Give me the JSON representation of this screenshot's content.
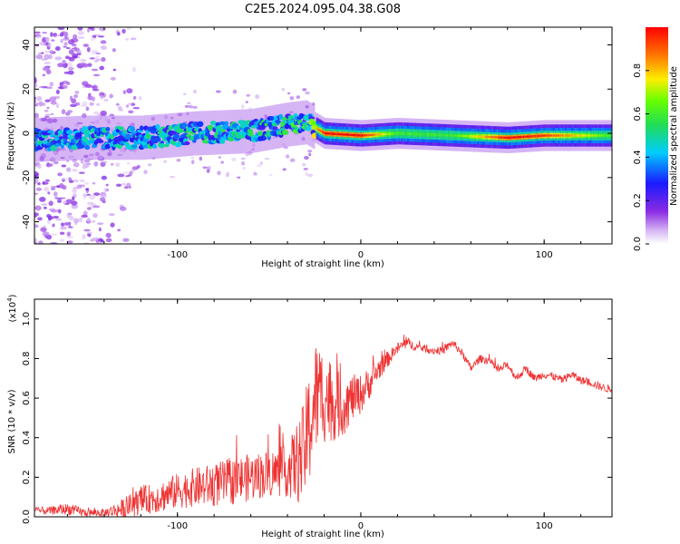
{
  "title": "C2E5.2024.095.04.38.G08",
  "colorbar": {
    "label": "Normalized spectral amplitude",
    "ticks": [
      "0.0",
      "0.2",
      "0.4",
      "0.6",
      "0.8"
    ]
  },
  "chart_data": [
    {
      "type": "heatmap",
      "xlabel": "Height of straight line (km)",
      "ylabel": "Frequency (Hz)",
      "xlim": [
        -178,
        137
      ],
      "ylim": [
        -50,
        48
      ],
      "xticks": [
        -100,
        0,
        100
      ],
      "yticks": [
        -40,
        -20,
        0,
        20,
        40
      ],
      "xtick_labels": [
        "-100",
        "0",
        "100"
      ],
      "ytick_labels": [
        "-40",
        "-20",
        "0",
        "20",
        "40"
      ],
      "colormap": "rainbow (violet=0.0 to red=1.0)",
      "ridge": {
        "description": "bright doppler band near 0 Hz; broad and noisy below -20 km, narrow and strong above",
        "x": [
          -178,
          -150,
          -120,
          -90,
          -60,
          -40,
          -30,
          -20,
          0,
          20,
          50,
          80,
          100,
          137
        ],
        "freq": [
          -3,
          -2,
          -2,
          0,
          1,
          4,
          5,
          0,
          -1,
          0,
          -1,
          -2,
          -1,
          -1
        ],
        "peak_amplitude": [
          0.45,
          0.45,
          0.45,
          0.5,
          0.5,
          0.55,
          0.6,
          1.0,
          1.0,
          0.6,
          0.6,
          1.0,
          0.95,
          0.6
        ]
      },
      "noise_region_x": [
        -178,
        -140
      ]
    },
    {
      "type": "line",
      "title": "",
      "xlabel": "Height of straight line (km)",
      "ylabel": "SNR (10 * v/v)",
      "scale_note": "(x10^4)",
      "scale_base": "(x10",
      "scale_exp": "4",
      "scale_close": ")",
      "xlim": [
        -178,
        137
      ],
      "ylim": [
        0.0,
        1.1
      ],
      "xticks": [
        -100,
        0,
        100
      ],
      "yticks": [
        0.0,
        0.2,
        0.4,
        0.6,
        0.8,
        1.0
      ],
      "xtick_labels": [
        "-100",
        "0",
        "100"
      ],
      "ytick_labels": [
        "0.0",
        "0.2",
        "0.4",
        "0.6",
        "0.8",
        "1.0"
      ],
      "color": "#ee3333",
      "series": [
        {
          "name": "SNR",
          "x": [
            -178,
            -170,
            -160,
            -150,
            -140,
            -130,
            -120,
            -110,
            -100,
            -90,
            -80,
            -70,
            -60,
            -50,
            -40,
            -32,
            -28,
            -25,
            -20,
            -15,
            -10,
            -5,
            0,
            5,
            10,
            15,
            20,
            25,
            30,
            35,
            40,
            45,
            50,
            55,
            60,
            65,
            70,
            75,
            80,
            85,
            90,
            95,
            100,
            105,
            110,
            115,
            120,
            125,
            130,
            137
          ],
          "y": [
            0.03,
            0.03,
            0.04,
            0.02,
            0.02,
            0.04,
            0.08,
            0.1,
            0.13,
            0.15,
            0.16,
            0.18,
            0.2,
            0.22,
            0.23,
            0.3,
            0.45,
            0.6,
            0.62,
            0.58,
            0.55,
            0.6,
            0.62,
            0.68,
            0.75,
            0.8,
            0.85,
            0.88,
            0.86,
            0.85,
            0.84,
            0.84,
            0.88,
            0.83,
            0.75,
            0.8,
            0.79,
            0.74,
            0.77,
            0.7,
            0.75,
            0.7,
            0.72,
            0.71,
            0.69,
            0.72,
            0.69,
            0.68,
            0.66,
            0.64
          ],
          "noise_amplitude": [
            0.02,
            0.02,
            0.03,
            0.02,
            0.02,
            0.05,
            0.07,
            0.08,
            0.09,
            0.1,
            0.11,
            0.12,
            0.12,
            0.12,
            0.13,
            0.25,
            0.3,
            0.3,
            0.25,
            0.2,
            0.15,
            0.12,
            0.1,
            0.08,
            0.06,
            0.04,
            0.03,
            0.03,
            0.02,
            0.02,
            0.02,
            0.02,
            0.02,
            0.02,
            0.02,
            0.02,
            0.02,
            0.02,
            0.02,
            0.02,
            0.02,
            0.02,
            0.02,
            0.02,
            0.02,
            0.02,
            0.02,
            0.02,
            0.02,
            0.02
          ]
        }
      ]
    }
  ]
}
